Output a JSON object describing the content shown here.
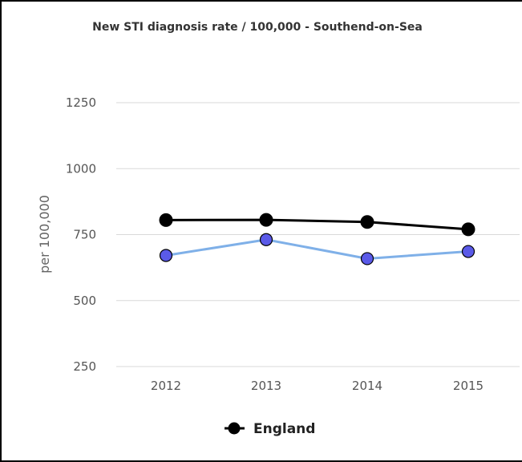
{
  "chart_data": {
    "type": "line",
    "title": "New STI diagnosis rate / 100,000 - Southend-on-Sea",
    "ylabel": "per 100,000",
    "xlabel": "",
    "categories": [
      "2012",
      "2013",
      "2014",
      "2015"
    ],
    "yticks": [
      "250",
      "500",
      "750",
      "1000",
      "1250"
    ],
    "ylim": [
      250,
      1350
    ],
    "grid": true,
    "legend_position": "bottom",
    "series": [
      {
        "name": "England",
        "values": [
          805,
          806,
          798,
          770
        ],
        "line_color": "#000000",
        "marker_color": "#000000",
        "in_legend": true
      },
      {
        "values": [
          671,
          731,
          659,
          686
        ],
        "line_color": "#7fb0e8",
        "marker_color": "#5a5ae8",
        "in_legend": false
      }
    ]
  }
}
